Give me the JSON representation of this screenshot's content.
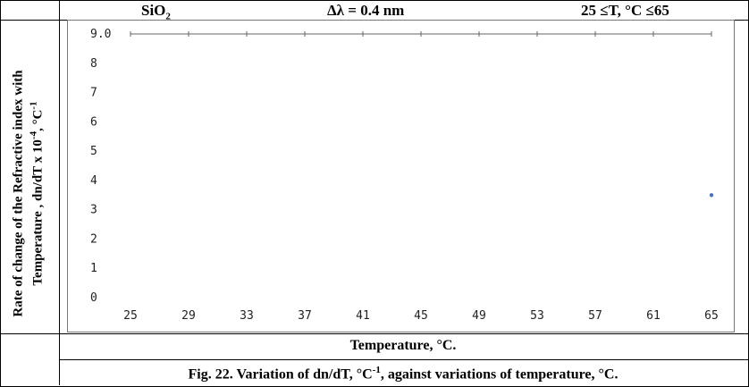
{
  "header": {
    "material": "SiO",
    "material_sub": "2",
    "delta_lambda": "Δλ = 0.4 nm",
    "temp_range": "25 ≤T, °C ≤65"
  },
  "chart_data": {
    "type": "scatter",
    "ylabel_line1": "Rate of change of the Refractive index with",
    "ylabel_line2_a": "Temperature , dn/dT x 10",
    "ylabel_line2_sup1": "-4",
    "ylabel_line2_b": ", °C",
    "ylabel_line2_sup2": "-1",
    "xlabel": "Temperature, °C.",
    "x_ticks": [
      25,
      29,
      33,
      37,
      41,
      45,
      49,
      53,
      57,
      61,
      65
    ],
    "y_ticks": [
      "0",
      "1",
      "2",
      "3",
      "4",
      "5",
      "6",
      "7",
      "8",
      "9.0"
    ],
    "xlim": [
      25,
      65
    ],
    "ylim": [
      0,
      9
    ],
    "grid": false,
    "series": [
      {
        "points": [
          {
            "x": 65,
            "y": 3.5
          }
        ],
        "color": "#4472c4"
      }
    ]
  },
  "caption": {
    "part1": "Fig. 22. Variation of dn/dT, °C",
    "sup": "-1",
    "part2": ", against variations of temperature, °C."
  }
}
